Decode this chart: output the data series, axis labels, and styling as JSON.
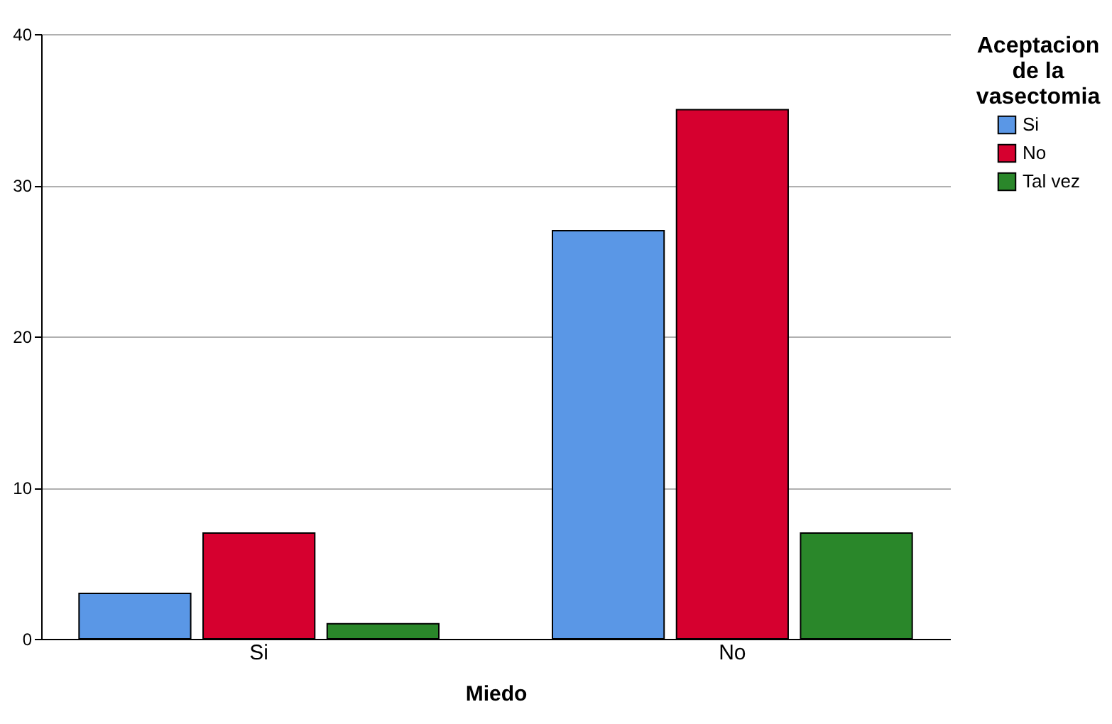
{
  "chart_data": {
    "type": "bar",
    "xlabel": "Miedo",
    "legend_title": "Aceptacion de la vasectomia",
    "categories": [
      "Si",
      "No"
    ],
    "series": [
      {
        "name": "Si",
        "color": "#5a97e6",
        "values": [
          3,
          27
        ]
      },
      {
        "name": "No",
        "color": "#d6002f",
        "values": [
          7,
          35
        ]
      },
      {
        "name": "Tal vez",
        "color": "#2a872a",
        "values": [
          1,
          7
        ]
      }
    ],
    "ylim": [
      0,
      40
    ],
    "yticks": [
      0,
      10,
      20,
      30,
      40
    ],
    "grid": "y",
    "legend": "right"
  }
}
